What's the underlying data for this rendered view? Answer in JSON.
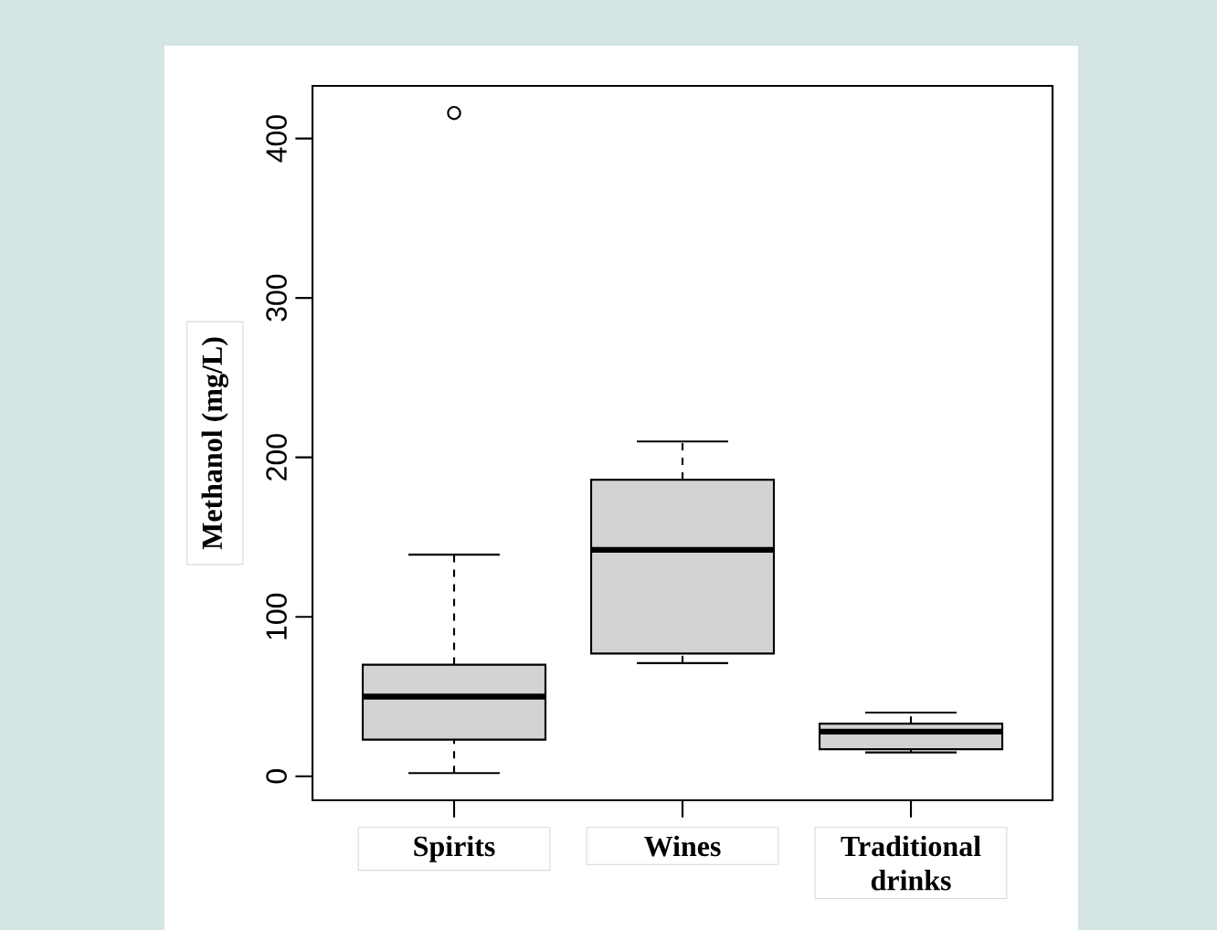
{
  "chart_data": {
    "type": "box",
    "ylabel": "Methanol (mg/L)",
    "categories": [
      "Spirits",
      "Wines",
      "Traditional drinks"
    ],
    "boxes": [
      {
        "low": 2,
        "q1": 23,
        "median": 50,
        "q3": 70,
        "high": 139,
        "outliers": [
          416
        ]
      },
      {
        "low": 71,
        "q1": 77,
        "median": 142,
        "q3": 186,
        "high": 210
      },
      {
        "low": 15,
        "q1": 17,
        "median": 28,
        "q3": 33,
        "high": 40
      }
    ],
    "color": "#d3d3d3",
    "ylim": [
      -15,
      433
    ],
    "yticks": [
      0,
      100,
      200,
      300,
      400
    ],
    "grid": false
  }
}
